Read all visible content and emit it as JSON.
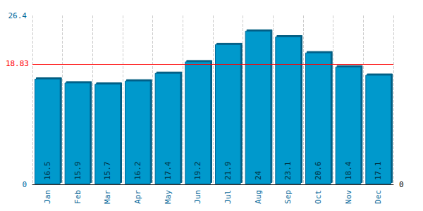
{
  "chart_data": {
    "type": "bar",
    "categories": [
      "Jan",
      "Feb",
      "Mar",
      "Apr",
      "May",
      "Jun",
      "Jul",
      "Aug",
      "Sep",
      "Oct",
      "Nov",
      "Dec"
    ],
    "values": [
      16.5,
      15.9,
      15.7,
      16.2,
      17.4,
      19.2,
      21.9,
      24,
      23.1,
      20.6,
      18.4,
      17.1
    ],
    "color": "#0099cc",
    "ylim": [
      0,
      26.4
    ],
    "yticks": [
      0,
      26.4
    ],
    "y2lim": [
      0,
      26.4
    ],
    "y2ticks": [
      0
    ],
    "reference_line": 18.83,
    "data_labels": true,
    "grid": true
  }
}
